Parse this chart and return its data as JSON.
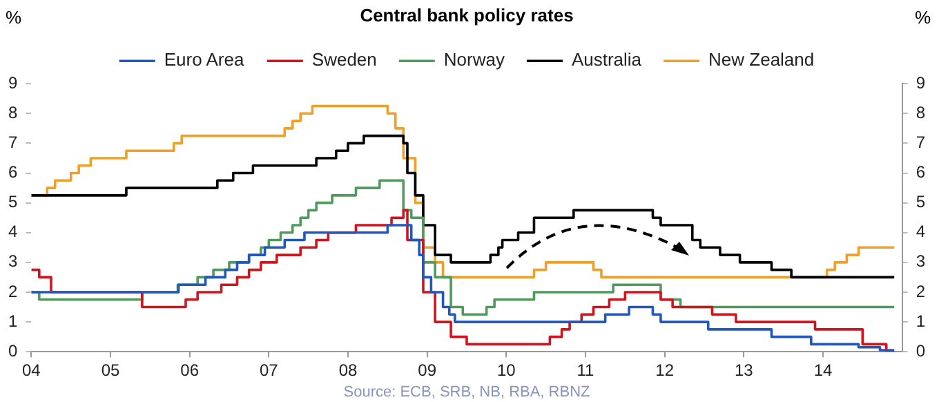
{
  "chart_data": {
    "type": "step",
    "title": "Central bank policy rates",
    "ylabel": "%",
    "y2label": "%",
    "annotations": [
      "Source: ECB, SRB, NB, RBA, RBNZ"
    ],
    "xlim": [
      2004,
      2015
    ],
    "xticks": [
      {
        "value": 2004,
        "label": "04"
      },
      {
        "value": 2005,
        "label": "05"
      },
      {
        "value": 2006,
        "label": "06"
      },
      {
        "value": 2007,
        "label": "07"
      },
      {
        "value": 2008,
        "label": "08"
      },
      {
        "value": 2009,
        "label": "09"
      },
      {
        "value": 2010,
        "label": "10"
      },
      {
        "value": 2011,
        "label": "11"
      },
      {
        "value": 2012,
        "label": "12"
      },
      {
        "value": 2013,
        "label": "13"
      },
      {
        "value": 2014,
        "label": "14"
      }
    ],
    "ylim": [
      0,
      9
    ],
    "yticks": [
      0,
      1,
      2,
      3,
      4,
      5,
      6,
      7,
      8,
      9
    ],
    "y2lim": [
      0,
      9
    ],
    "y2ticks": [
      0,
      1,
      2,
      3,
      4,
      5,
      6,
      7,
      8,
      9
    ],
    "legend": "top",
    "grid": false,
    "marker": "none",
    "line_style": "solid",
    "series": [
      {
        "name": "Euro Area",
        "color": "#2058c0",
        "x": [
          2004,
          2005.86,
          2006.2,
          2006.45,
          2006.6,
          2006.75,
          2006.95,
          2007.2,
          2007.45,
          2008.5,
          2008.8,
          2008.9,
          2008.95,
          2009.05,
          2009.2,
          2009.28,
          2009.35,
          2011.25,
          2011.55,
          2011.85,
          2011.95,
          2012.55,
          2013.35,
          2013.85,
          2014.45,
          2014.72,
          2014.9
        ],
        "values": [
          2,
          2.25,
          2.5,
          2.75,
          3,
          3.25,
          3.5,
          3.75,
          4,
          4.25,
          3.75,
          3.25,
          2.5,
          2,
          1.5,
          1.25,
          1,
          1.25,
          1.5,
          1.25,
          1,
          0.75,
          0.5,
          0.25,
          0.15,
          0.05,
          0.05
        ]
      },
      {
        "name": "Sweden",
        "color": "#d0141e",
        "x": [
          2004,
          2004.1,
          2004.25,
          2005.4,
          2005.95,
          2006.1,
          2006.4,
          2006.6,
          2006.75,
          2006.9,
          2007.1,
          2007.4,
          2007.6,
          2007.75,
          2008.1,
          2008.55,
          2008.7,
          2008.75,
          2008.95,
          2009.1,
          2009.3,
          2009.5,
          2010.55,
          2010.7,
          2010.8,
          2010.95,
          2011.1,
          2011.3,
          2011.5,
          2011.95,
          2012.1,
          2012.6,
          2012.9,
          2013.9,
          2014.5,
          2014.8,
          2014.9
        ],
        "values": [
          2.75,
          2.5,
          2,
          1.5,
          1.75,
          2,
          2.25,
          2.5,
          2.75,
          3,
          3.25,
          3.5,
          3.75,
          4,
          4.25,
          4.5,
          4.75,
          3.75,
          2,
          1,
          0.5,
          0.25,
          0.5,
          0.75,
          1,
          1.25,
          1.5,
          1.75,
          2,
          1.75,
          1.5,
          1.25,
          1,
          0.75,
          0.25,
          0,
          0
        ]
      },
      {
        "name": "Norway",
        "color": "#4f9a5c",
        "x": [
          2004,
          2004.1,
          2005.4,
          2005.85,
          2006.1,
          2006.3,
          2006.5,
          2006.75,
          2006.9,
          2007,
          2007.15,
          2007.3,
          2007.4,
          2007.5,
          2007.6,
          2007.8,
          2008.1,
          2008.4,
          2008.7,
          2008.8,
          2008.95,
          2009.1,
          2009.3,
          2009.45,
          2009.75,
          2009.85,
          2010.35,
          2011.35,
          2011.95,
          2012.2,
          2014.9
        ],
        "values": [
          2,
          1.75,
          2,
          2.25,
          2.5,
          2.75,
          3,
          3.25,
          3.5,
          3.75,
          4,
          4.25,
          4.5,
          4.75,
          5,
          5.25,
          5.5,
          5.75,
          4.75,
          4.5,
          3,
          2.5,
          1.5,
          1.25,
          1.5,
          1.75,
          2,
          2.25,
          1.75,
          1.5,
          1.5
        ]
      },
      {
        "name": "Australia",
        "color": "#000000",
        "x": [
          2004,
          2005.2,
          2006.35,
          2006.55,
          2006.8,
          2007.6,
          2007.85,
          2008,
          2008.2,
          2008.7,
          2008.75,
          2008.85,
          2008.95,
          2009.1,
          2009.3,
          2009.8,
          2009.9,
          2009.95,
          2010.15,
          2010.35,
          2010.85,
          2011.85,
          2011.95,
          2012.35,
          2012.45,
          2012.7,
          2012.95,
          2013.35,
          2013.6,
          2014.9
        ],
        "values": [
          5.25,
          5.5,
          5.75,
          6,
          6.25,
          6.5,
          6.75,
          7,
          7.25,
          7,
          6,
          5.25,
          4.25,
          3.25,
          3,
          3.25,
          3.5,
          3.75,
          4,
          4.5,
          4.75,
          4.5,
          4.25,
          3.75,
          3.5,
          3.25,
          3,
          2.75,
          2.5,
          2.5
        ]
      },
      {
        "name": "New Zealand",
        "color": "#f0a028",
        "x": [
          2004,
          2004.2,
          2004.3,
          2004.5,
          2004.6,
          2004.75,
          2005.2,
          2005.8,
          2005.9,
          2007.2,
          2007.3,
          2007.4,
          2007.55,
          2008.5,
          2008.6,
          2008.7,
          2008.85,
          2008.95,
          2009.1,
          2009.2,
          2010.35,
          2010.5,
          2011.1,
          2011.2,
          2014.05,
          2014.15,
          2014.3,
          2014.45,
          2014.9
        ],
        "values": [
          5.25,
          5.5,
          5.75,
          6,
          6.25,
          6.5,
          6.75,
          7,
          7.25,
          7.5,
          7.75,
          8,
          8.25,
          8,
          7.5,
          6.5,
          5,
          3.5,
          3,
          2.5,
          2.75,
          3,
          2.75,
          2.5,
          2.75,
          3,
          3.25,
          3.5,
          3.5
        ]
      }
    ]
  }
}
